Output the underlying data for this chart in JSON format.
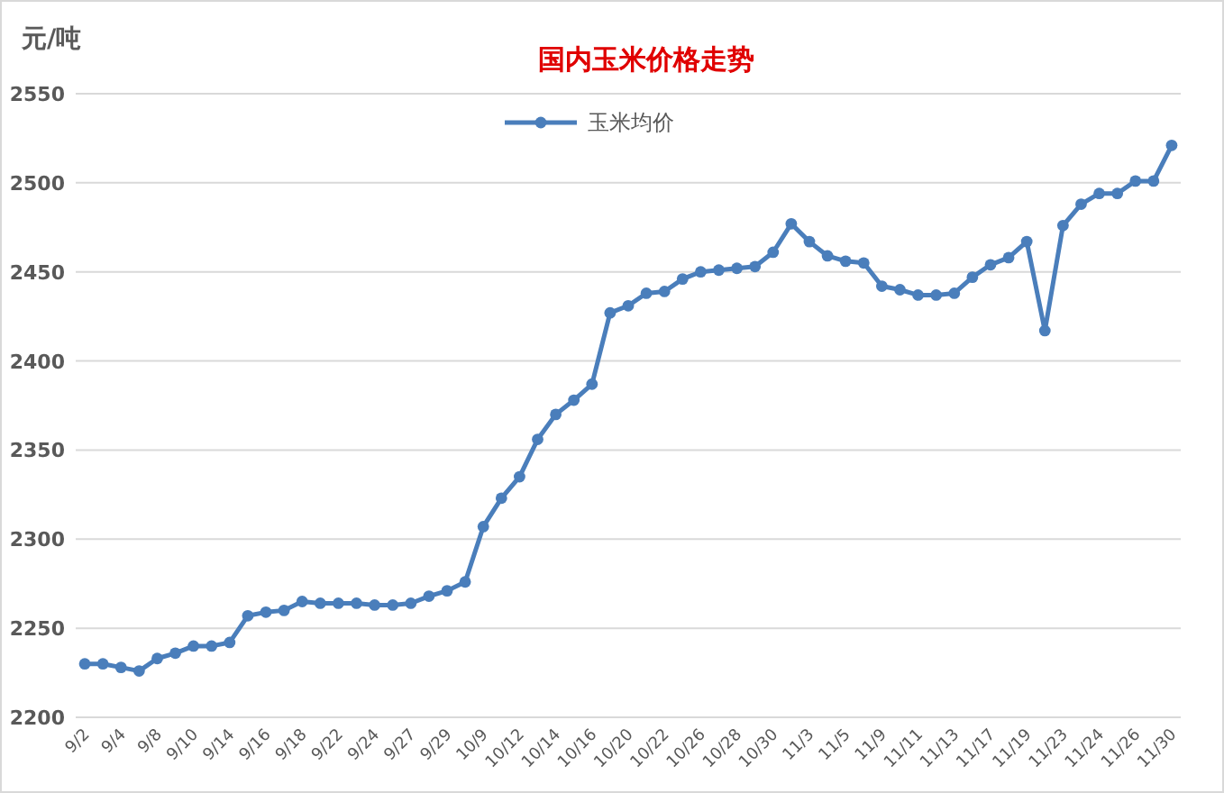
{
  "chart_data": {
    "type": "line",
    "title": "国内玉米价格走势",
    "ylabel": "元/吨",
    "categories": [
      "9/2",
      null,
      "9/4",
      null,
      "9/8",
      null,
      "9/10",
      null,
      "9/14",
      null,
      "9/16",
      null,
      "9/18",
      null,
      "9/22",
      null,
      "9/24",
      null,
      "9/27",
      null,
      "9/29",
      null,
      "10/9",
      null,
      "10/12",
      null,
      "10/14",
      null,
      "10/16",
      null,
      "10/20",
      null,
      "10/22",
      null,
      "10/26",
      null,
      "10/28",
      null,
      "10/30",
      null,
      "11/3",
      null,
      "11/5",
      null,
      "11/9",
      null,
      "11/11",
      null,
      "11/13",
      null,
      "11/17",
      null,
      "11/19",
      null,
      "11/23",
      null,
      "11/24",
      null,
      "11/26",
      null,
      "11/30"
    ],
    "series": [
      {
        "name": "玉米均价",
        "color": "#4a7ebb",
        "values": [
          2230,
          2230,
          2228,
          2226,
          2233,
          2236,
          2240,
          2240,
          2242,
          2257,
          2259,
          2260,
          2265,
          2264,
          2264,
          2264,
          2263,
          2263,
          2264,
          2268,
          2271,
          2276,
          2307,
          2323,
          2335,
          2356,
          2370,
          2378,
          2387,
          2427,
          2431,
          2438,
          2439,
          2446,
          2450,
          2451,
          2452,
          2453,
          2461,
          2477,
          2467,
          2459,
          2456,
          2455,
          2442,
          2440,
          2437,
          2437,
          2438,
          2447,
          2454,
          2458,
          2467,
          2417,
          2476,
          2488,
          2494,
          2494,
          2501,
          2501,
          2521
        ]
      }
    ],
    "ylim": [
      2200,
      2550
    ],
    "yticks": [
      2200,
      2250,
      2300,
      2350,
      2400,
      2450,
      2500,
      2550
    ],
    "grid": "y",
    "legend": "top",
    "marker": "circle",
    "line_style": "solid"
  }
}
